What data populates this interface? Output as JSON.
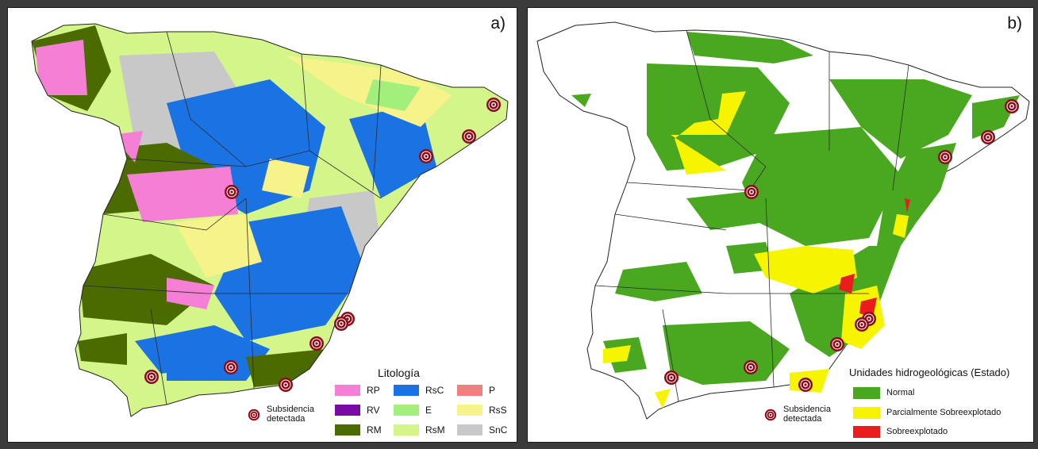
{
  "panel_a": {
    "label": "a)",
    "legend_title": "Litología",
    "lithology": [
      {
        "code": "RP",
        "color": "#f47fd4"
      },
      {
        "code": "RV",
        "color": "#7a0aa4"
      },
      {
        "code": "RM",
        "color": "#4b6b00"
      },
      {
        "code": "RsC",
        "color": "#1a72e3"
      },
      {
        "code": "E",
        "color": "#a2ef7c"
      },
      {
        "code": "RsM",
        "color": "#d4f58a"
      },
      {
        "code": "P",
        "color": "#f07f7f"
      },
      {
        "code": "RsS",
        "color": "#f6f38a"
      },
      {
        "code": "SnC",
        "color": "#c8c8c8"
      }
    ],
    "subsidence_label": "Subsidencia\ndetectada"
  },
  "panel_b": {
    "label": "b)",
    "legend_title": "Unidades hidrogeológicas (Estado)",
    "status": [
      {
        "name": "Normal",
        "color": "#4aa820"
      },
      {
        "name": "Parcialmente Sobreexplotado",
        "color": "#f7f400"
      },
      {
        "name": "Sobreexplotado",
        "color": "#ea1c1c"
      }
    ],
    "subsidence_label": "Subsidencia\ndetectada"
  }
}
